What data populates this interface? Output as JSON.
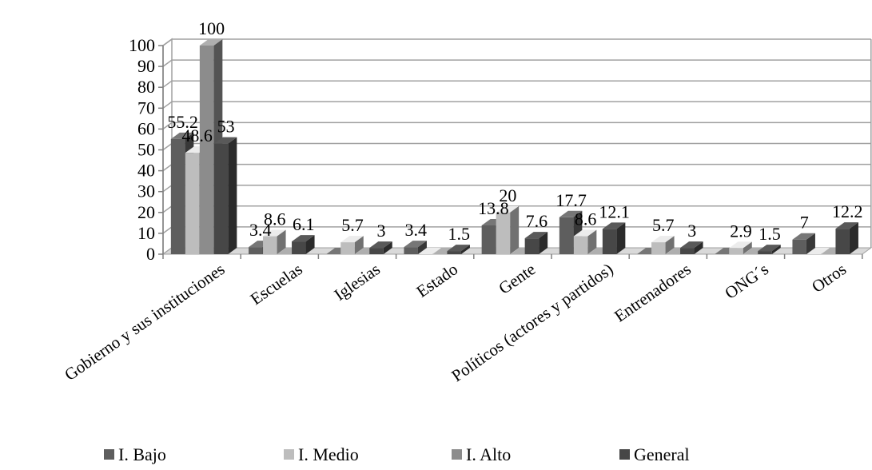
{
  "chart_data": {
    "type": "bar",
    "title": "",
    "xlabel": "",
    "ylabel": "",
    "ylim": [
      0,
      100
    ],
    "yticks": [
      0,
      10,
      20,
      30,
      40,
      50,
      60,
      70,
      80,
      90,
      100
    ],
    "grid": true,
    "legend_position": "bottom",
    "categories": [
      "Gobierno y sus instituciones",
      "Escuelas",
      "Iglesias",
      "Estado",
      "Gente",
      "Políticos (actores y partidos)",
      "Entrenadores",
      "ONG´s",
      "Otros"
    ],
    "series": [
      {
        "name": "I. Bajo",
        "color": "#5e5e5e",
        "values": [
          55.2,
          3.4,
          0,
          3.4,
          13.8,
          17.7,
          0,
          0,
          7
        ]
      },
      {
        "name": "I. Medio",
        "color": "#bdbdbd",
        "values": [
          48.6,
          8.6,
          5.7,
          0,
          20,
          8.6,
          5.7,
          2.9,
          0
        ]
      },
      {
        "name": "I. Alto",
        "color": "#8c8c8c",
        "values": [
          100,
          0,
          0,
          0,
          0,
          0,
          0,
          0,
          0
        ]
      },
      {
        "name": "General",
        "color": "#474747",
        "values": [
          53,
          6.1,
          3,
          1.5,
          7.6,
          12.1,
          3,
          1.5,
          12.2
        ]
      }
    ],
    "data_labels": [
      {
        "category": 0,
        "series": 0,
        "text": "55.2"
      },
      {
        "category": 0,
        "series": 1,
        "text": "48.6"
      },
      {
        "category": 0,
        "series": 2,
        "text": "100"
      },
      {
        "category": 0,
        "series": 3,
        "text": "53"
      },
      {
        "category": 1,
        "series": 0,
        "text": "3.4"
      },
      {
        "category": 1,
        "series": 1,
        "text": "8.6"
      },
      {
        "category": 1,
        "series": 3,
        "text": "6.1"
      },
      {
        "category": 2,
        "series": 1,
        "text": "5.7"
      },
      {
        "category": 2,
        "series": 3,
        "text": "3"
      },
      {
        "category": 3,
        "series": 0,
        "text": "3.4"
      },
      {
        "category": 3,
        "series": 3,
        "text": "1.5"
      },
      {
        "category": 4,
        "series": 0,
        "text": "13.8"
      },
      {
        "category": 4,
        "series": 1,
        "text": "20"
      },
      {
        "category": 4,
        "series": 3,
        "text": "7.6"
      },
      {
        "category": 5,
        "series": 0,
        "text": "17.7"
      },
      {
        "category": 5,
        "series": 1,
        "text": "8.6"
      },
      {
        "category": 5,
        "series": 3,
        "text": "12.1"
      },
      {
        "category": 6,
        "series": 1,
        "text": "5.7"
      },
      {
        "category": 6,
        "series": 3,
        "text": "3"
      },
      {
        "category": 7,
        "series": 1,
        "text": "2.9"
      },
      {
        "category": 7,
        "series": 3,
        "text": "1.5"
      },
      {
        "category": 8,
        "series": 0,
        "text": "7"
      },
      {
        "category": 8,
        "series": 3,
        "text": "12.2"
      }
    ]
  }
}
